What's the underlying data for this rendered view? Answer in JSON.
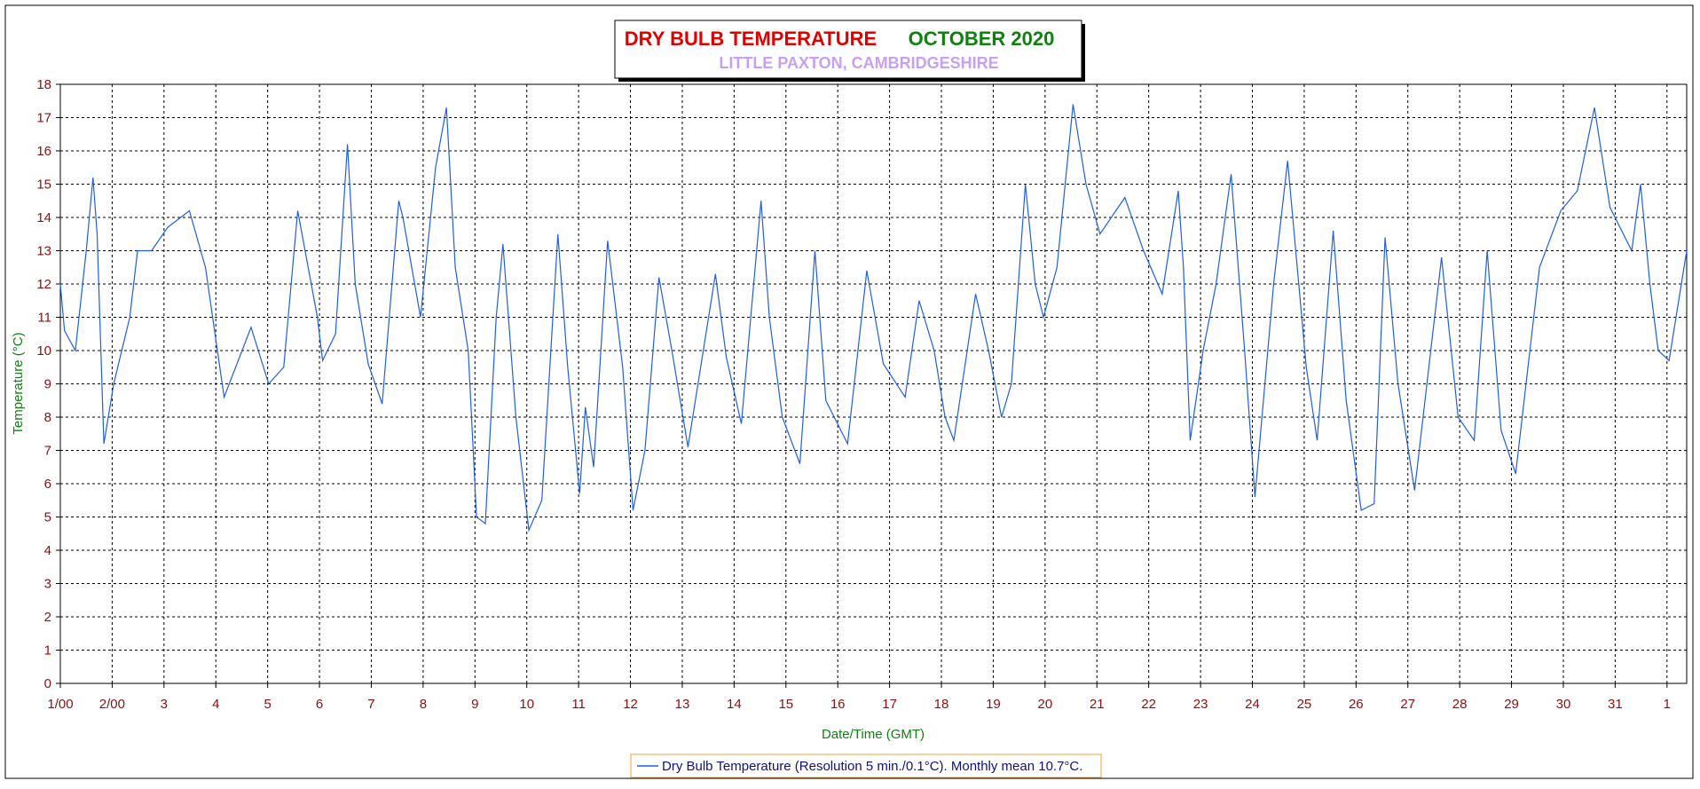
{
  "chart_data": {
    "type": "line",
    "title": "DRY BULB TEMPERATURE",
    "title_date": "OCTOBER 2020",
    "subtitle": "LITTLE PAXTON, CAMBRIDGESHIRE",
    "x_label": "Date/Time (GMT)",
    "y_label": "Temperature (°C)",
    "xlim": [
      1,
      32.38
    ],
    "ylim": [
      0,
      18
    ],
    "xticks": [
      {
        "value": 1,
        "label": "1/00"
      },
      {
        "value": 2,
        "label": "2/00"
      },
      3,
      4,
      5,
      6,
      7,
      8,
      9,
      10,
      11,
      12,
      13,
      14,
      15,
      16,
      17,
      18,
      19,
      20,
      21,
      22,
      23,
      24,
      25,
      26,
      27,
      28,
      29,
      30,
      31,
      {
        "value": 32,
        "label": "1"
      }
    ],
    "yticks": [
      0,
      1,
      2,
      3,
      4,
      5,
      6,
      7,
      8,
      9,
      10,
      11,
      12,
      13,
      14,
      15,
      16,
      17,
      18
    ],
    "grid": true,
    "legend": "bottom",
    "x": [
      1.0,
      1.08,
      1.29,
      1.5,
      1.63,
      1.71,
      1.84,
      2.03,
      2.34,
      2.49,
      2.76,
      3.07,
      3.49,
      3.8,
      4.16,
      4.68,
      5.02,
      5.31,
      5.58,
      5.96,
      6.06,
      6.31,
      6.54,
      6.69,
      6.94,
      7.21,
      7.53,
      7.61,
      7.95,
      8.24,
      8.45,
      8.62,
      8.87,
      9.03,
      9.2,
      9.41,
      9.54,
      9.79,
      10.04,
      10.29,
      10.6,
      10.79,
      11.02,
      11.13,
      11.29,
      11.56,
      11.85,
      12.05,
      12.28,
      12.55,
      12.8,
      13.11,
      13.64,
      13.85,
      14.14,
      14.52,
      14.68,
      14.93,
      15.27,
      15.56,
      15.77,
      16.19,
      16.56,
      16.88,
      17.3,
      17.57,
      17.86,
      18.07,
      18.24,
      18.66,
      18.91,
      19.16,
      19.35,
      19.62,
      19.81,
      19.97,
      20.23,
      20.54,
      20.79,
      21.06,
      21.54,
      21.9,
      22.26,
      22.57,
      22.67,
      22.8,
      23.05,
      23.3,
      23.59,
      23.85,
      24.05,
      24.41,
      24.68,
      25.04,
      25.25,
      25.56,
      25.81,
      26.1,
      26.35,
      26.56,
      26.81,
      27.13,
      27.65,
      27.97,
      28.28,
      28.53,
      28.8,
      29.08,
      29.54,
      29.95,
      30.27,
      30.6,
      30.9,
      31.32,
      31.49,
      31.67,
      31.83,
      32.04,
      32.38
    ],
    "series": [
      {
        "name": "Dry Bulb Temperature (Resolution 5 min./0.1°C). Monthly mean 10.7°C.",
        "color": "#1f5fe0",
        "values": [
          12,
          10.6,
          10.0,
          13.0,
          15.2,
          13.5,
          7.2,
          9.0,
          11,
          13.0,
          13.0,
          13.7,
          14.2,
          12.5,
          8.6,
          10.7,
          9.0,
          9.5,
          14.2,
          11,
          9.7,
          10.5,
          16.2,
          12,
          9.6,
          8.4,
          14.5,
          14,
          11,
          15.5,
          17.3,
          12.5,
          10,
          5.0,
          4.8,
          11,
          13.2,
          8,
          4.6,
          5.5,
          13.5,
          9.5,
          5.7,
          8.3,
          6.5,
          13.3,
          9.5,
          5.2,
          7,
          12.2,
          10,
          7.1,
          12.3,
          9.8,
          7.8,
          14.5,
          11,
          8,
          6.6,
          13,
          8.5,
          7.2,
          12.4,
          9.6,
          8.6,
          11.5,
          10,
          8,
          7.3,
          11.7,
          10,
          8,
          9,
          15,
          12,
          11,
          12.5,
          17.4,
          15,
          13.5,
          14.6,
          13,
          11.7,
          14.8,
          12.5,
          7.3,
          10,
          12,
          15.3,
          10,
          5.6,
          12,
          15.7,
          9.5,
          7.3,
          13.6,
          8.5,
          5.2,
          5.4,
          13.4,
          9,
          5.8,
          12.8,
          8,
          7.3,
          13,
          7.6,
          6.3,
          12.5,
          14.2,
          14.8,
          17.3,
          14.3,
          13,
          15,
          12,
          10,
          9.7,
          13
        ]
      }
    ]
  }
}
